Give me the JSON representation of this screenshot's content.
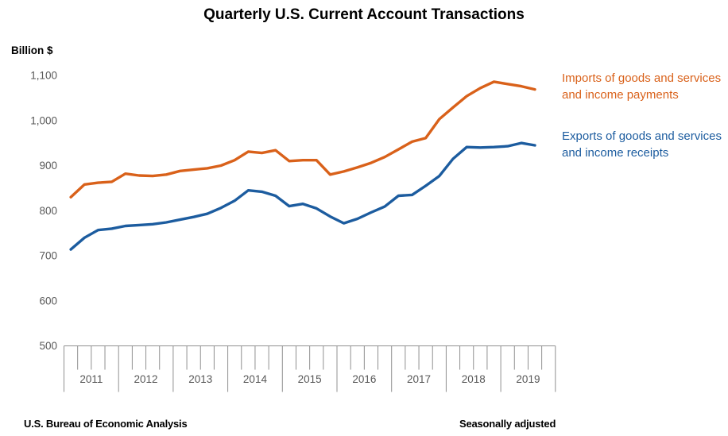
{
  "title": "Quarterly U.S. Current Account Transactions",
  "y_axis_unit_label": "Billion $",
  "legend": {
    "imports_label": "Imports of goods and services and income payments",
    "exports_label": "Exports of goods and services and income receipts"
  },
  "footer": {
    "source": "U.S. Bureau of Economic Analysis",
    "adjustment_note": "Seasonally adjusted"
  },
  "colors": {
    "imports": "#d9611a",
    "exports": "#1c5c9f",
    "axis": "#909090",
    "tick_label": "#595959"
  },
  "chart_data": {
    "type": "line",
    "title": "Quarterly U.S. Current Account Transactions",
    "xlabel": "",
    "ylabel": "Billion $",
    "ylim": [
      500,
      1100
    ],
    "grid": false,
    "legend_position": "right",
    "frequency": "quarterly",
    "seasonally_adjusted": true,
    "y_tick_values": [
      1100,
      1000,
      900,
      800,
      700,
      600,
      500
    ],
    "y_tick_labels": [
      "1,100",
      "1,000",
      "900",
      "800",
      "700",
      "600",
      "500"
    ],
    "x_years": [
      "2011",
      "2012",
      "2013",
      "2014",
      "2015",
      "2016",
      "2017",
      "2018",
      "2019"
    ],
    "x_quarters": [
      "2011Q1",
      "2011Q2",
      "2011Q3",
      "2011Q4",
      "2012Q1",
      "2012Q2",
      "2012Q3",
      "2012Q4",
      "2013Q1",
      "2013Q2",
      "2013Q3",
      "2013Q4",
      "2014Q1",
      "2014Q2",
      "2014Q3",
      "2014Q4",
      "2015Q1",
      "2015Q2",
      "2015Q3",
      "2015Q4",
      "2016Q1",
      "2016Q2",
      "2016Q3",
      "2016Q4",
      "2017Q1",
      "2017Q2",
      "2017Q3",
      "2017Q4",
      "2018Q1",
      "2018Q2",
      "2018Q3",
      "2018Q4",
      "2019Q1",
      "2019Q2",
      "2019Q3"
    ],
    "series": [
      {
        "name": "Imports of goods and services and income payments",
        "color": "#d9611a",
        "values": [
          830,
          858,
          862,
          864,
          882,
          878,
          877,
          880,
          888,
          891,
          894,
          900,
          912,
          931,
          928,
          934,
          910,
          912,
          912,
          880,
          887,
          896,
          906,
          919,
          936,
          953,
          961,
          1003,
          1029,
          1054,
          1072,
          1086,
          1081,
          1076,
          1069
        ]
      },
      {
        "name": "Exports of goods and services and income receipts",
        "color": "#1c5c9f",
        "values": [
          714,
          740,
          757,
          760,
          766,
          768,
          770,
          774,
          780,
          786,
          793,
          806,
          822,
          845,
          842,
          833,
          810,
          815,
          805,
          787,
          772,
          782,
          796,
          809,
          833,
          835,
          855,
          877,
          915,
          941,
          940,
          941,
          943,
          950,
          945
        ]
      }
    ]
  }
}
